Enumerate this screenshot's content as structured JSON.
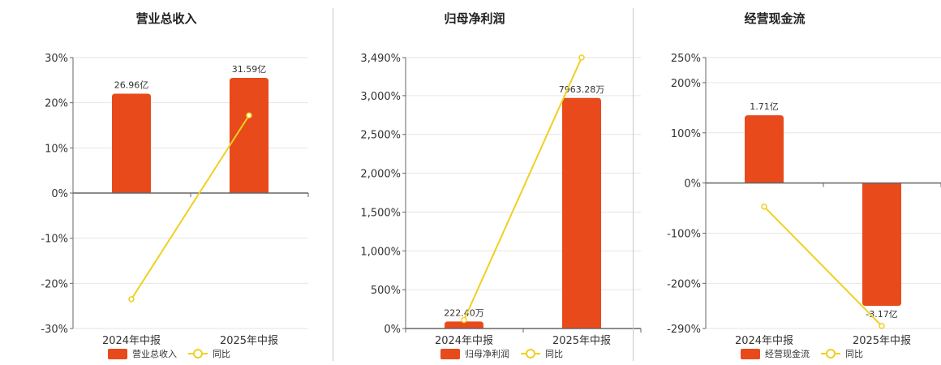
{
  "colors": {
    "bar": "#e84a1b",
    "line": "#f0d020",
    "grid": "#e6e6e6",
    "axis": "#666666"
  },
  "chart_data": [
    {
      "type": "bar",
      "title": "营业总收入",
      "categories": [
        "2024年中报",
        "2025年中报"
      ],
      "bar_labels": [
        "26.96亿",
        "31.59亿"
      ],
      "bar_values_pct_axis": [
        22,
        25.5
      ],
      "series": [
        {
          "name": "营业总收入",
          "values_yi": [
            26.96,
            31.59
          ]
        },
        {
          "name": "同比",
          "type": "line",
          "values_pct": [
            -23.5,
            17.2
          ]
        }
      ],
      "y_ticks": [
        "30%",
        "20%",
        "10%",
        "0%",
        "-10%",
        "-20%",
        "-30%"
      ],
      "y_tick_values": [
        30,
        20,
        10,
        0,
        -10,
        -20,
        -30
      ],
      "ylim": [
        -30,
        30
      ],
      "legend": [
        "营业总收入",
        "同比"
      ]
    },
    {
      "type": "bar",
      "title": "归母净利润",
      "categories": [
        "2024年中报",
        "2025年中报"
      ],
      "bar_labels": [
        "222.40万",
        "7963.28万"
      ],
      "bar_values_pct_axis": [
        90,
        2970
      ],
      "series": [
        {
          "name": "归母净利润",
          "values_wan": [
            222.4,
            7963.28
          ]
        },
        {
          "name": "同比",
          "type": "line",
          "values_pct": [
            110,
            3490
          ]
        }
      ],
      "y_ticks": [
        "3,490%",
        "3,000%",
        "2,500%",
        "2,000%",
        "1,500%",
        "1,000%",
        "500%",
        "0%"
      ],
      "y_tick_values": [
        3490,
        3000,
        2500,
        2000,
        1500,
        1000,
        500,
        0
      ],
      "ylim": [
        0,
        3490
      ],
      "legend": [
        "归母净利润",
        "同比"
      ]
    },
    {
      "type": "bar",
      "title": "经营现金流",
      "categories": [
        "2024年中报",
        "2025年中报"
      ],
      "bar_labels": [
        "1.71亿",
        "-3.17亿"
      ],
      "bar_values_pct_axis": [
        135,
        -245
      ],
      "series": [
        {
          "name": "经营现金流",
          "values_yi": [
            1.71,
            -3.17
          ]
        },
        {
          "name": "同比",
          "type": "line",
          "values_pct": [
            -47,
            -285
          ]
        }
      ],
      "y_ticks": [
        "250%",
        "200%",
        "100%",
        "0%",
        "-100%",
        "-200%",
        "-290%"
      ],
      "y_tick_values": [
        250,
        200,
        100,
        0,
        -100,
        -200,
        -290
      ],
      "ylim": [
        -290,
        250
      ],
      "legend": [
        "经营现金流",
        "同比"
      ]
    }
  ]
}
